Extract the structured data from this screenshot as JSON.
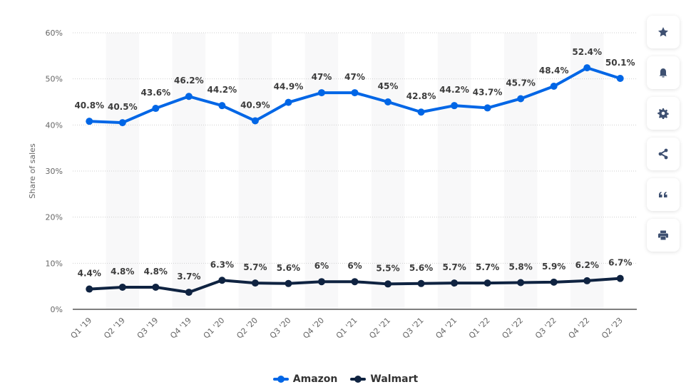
{
  "chart_data": {
    "type": "line",
    "title": "",
    "xlabel": "",
    "ylabel": "Share of sales",
    "ylim": [
      0,
      60
    ],
    "yticks": [
      0,
      10,
      20,
      30,
      40,
      50,
      60
    ],
    "ytick_labels": [
      "0%",
      "10%",
      "20%",
      "30%",
      "40%",
      "50%",
      "60%"
    ],
    "grid": true,
    "legend_position": "bottom-center",
    "categories": [
      "Q1 '19",
      "Q2 '19",
      "Q3 '19",
      "Q4 '19",
      "Q1 '20",
      "Q2 '20",
      "Q3 '20",
      "Q4 '20",
      "Q1 '21",
      "Q2 '21",
      "Q3 '21",
      "Q4 '21",
      "Q1 '22",
      "Q2 '22",
      "Q3 '22",
      "Q4 '22",
      "Q2 '23"
    ],
    "series": [
      {
        "name": "Amazon",
        "color": "#0066e6",
        "values": [
          40.8,
          40.5,
          43.6,
          46.2,
          44.2,
          40.9,
          44.9,
          47,
          47,
          45,
          42.8,
          44.2,
          43.7,
          45.7,
          48.4,
          52.4,
          50.1
        ],
        "labels": [
          "40.8%",
          "40.5%",
          "43.6%",
          "46.2%",
          "44.2%",
          "40.9%",
          "44.9%",
          "47%",
          "47%",
          "45%",
          "42.8%",
          "44.2%",
          "43.7%",
          "45.7%",
          "48.4%",
          "52.4%",
          "50.1%"
        ]
      },
      {
        "name": "Walmart",
        "color": "#0f2341",
        "values": [
          4.4,
          4.8,
          4.8,
          3.7,
          6.3,
          5.7,
          5.6,
          6,
          6,
          5.5,
          5.6,
          5.7,
          5.7,
          5.8,
          5.9,
          6.2,
          6.7
        ],
        "labels": [
          "4.4%",
          "4.8%",
          "4.8%",
          "3.7%",
          "6.3%",
          "5.7%",
          "5.6%",
          "6%",
          "6%",
          "5.5%",
          "5.6%",
          "5.7%",
          "5.7%",
          "5.8%",
          "5.9%",
          "6.2%",
          "6.7%"
        ]
      }
    ]
  },
  "legend": {
    "items": [
      {
        "label": "Amazon",
        "color": "#0066e6"
      },
      {
        "label": "Walmart",
        "color": "#0f2341"
      }
    ]
  },
  "sidebar": {
    "buttons": [
      {
        "icon": "star-icon",
        "label": "Favorite"
      },
      {
        "icon": "bell-icon",
        "label": "Notification"
      },
      {
        "icon": "gear-icon",
        "label": "Settings"
      },
      {
        "icon": "share-icon",
        "label": "Share"
      },
      {
        "icon": "quote-icon",
        "label": "Cite"
      },
      {
        "icon": "print-icon",
        "label": "Print"
      }
    ]
  }
}
